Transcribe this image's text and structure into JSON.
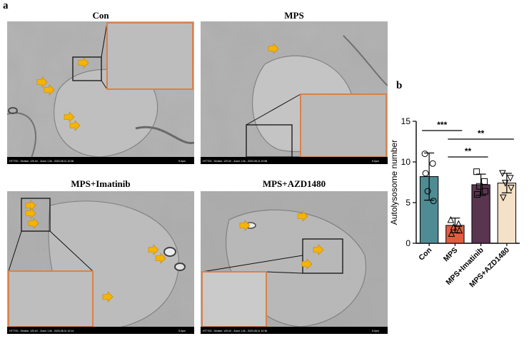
{
  "figure": {
    "panel_a_letter": "a",
    "panel_b_letter": "b"
  },
  "micrographs": [
    {
      "title": "Con",
      "caption": "HT7700 - Section: 120 kV - Zoom 1.0k - 2023-08-11 10:36",
      "scale": "5.0μm"
    },
    {
      "title": "MPS",
      "caption": "HT7700 - Section: 120 kV - Zoom 1.0k - 2023-08-11 10:58",
      "scale": "5.0μm"
    },
    {
      "title": "MPS+Imatinib",
      "caption": "HT7700 - Section: 120 kV - Zoom 1.0k - 2023-08-11 10:14",
      "scale": "5.0μm"
    },
    {
      "title": "MPS+AZD1480",
      "caption": "HT7700 - Section: 120 kV - Zoom 1.0k - 2023-08-11 10:36",
      "scale": "5.0μm"
    }
  ],
  "colors": {
    "con": "#4f8b93",
    "mps": "#e05d3f",
    "imatinib": "#5a3550",
    "azd": "#f3e2c8",
    "inset_border": "#d9824a",
    "arrow": "#f5b400"
  },
  "chart_data": {
    "type": "bar",
    "categories": [
      "Con",
      "MPS",
      "MPS+Imatinib",
      "MPS+AZD1480"
    ],
    "values": [
      8.2,
      2.2,
      7.2,
      7.4
    ],
    "errors": [
      2.9,
      0.9,
      1.3,
      1.2
    ],
    "points": [
      [
        11.0,
        9.8,
        6.4,
        5.2,
        8.6
      ],
      [
        2.9,
        2.4,
        2.0,
        1.6,
        1.2
      ],
      [
        8.8,
        7.6,
        7.0,
        6.4,
        6.0
      ],
      [
        8.6,
        8.0,
        7.4,
        6.8,
        5.6
      ]
    ],
    "markers": [
      "circle",
      "triangle-up",
      "square",
      "triangle-down"
    ],
    "ylabel": "Autolysosome number",
    "xlabel": "",
    "ylim": [
      0,
      15
    ],
    "yticks": [
      0,
      5,
      10,
      15
    ],
    "significance": [
      {
        "from": 0,
        "to": 1,
        "label": "***"
      },
      {
        "from": 1,
        "to": 2,
        "label": "**"
      },
      {
        "from": 1,
        "to": 3,
        "label": "**"
      }
    ]
  }
}
